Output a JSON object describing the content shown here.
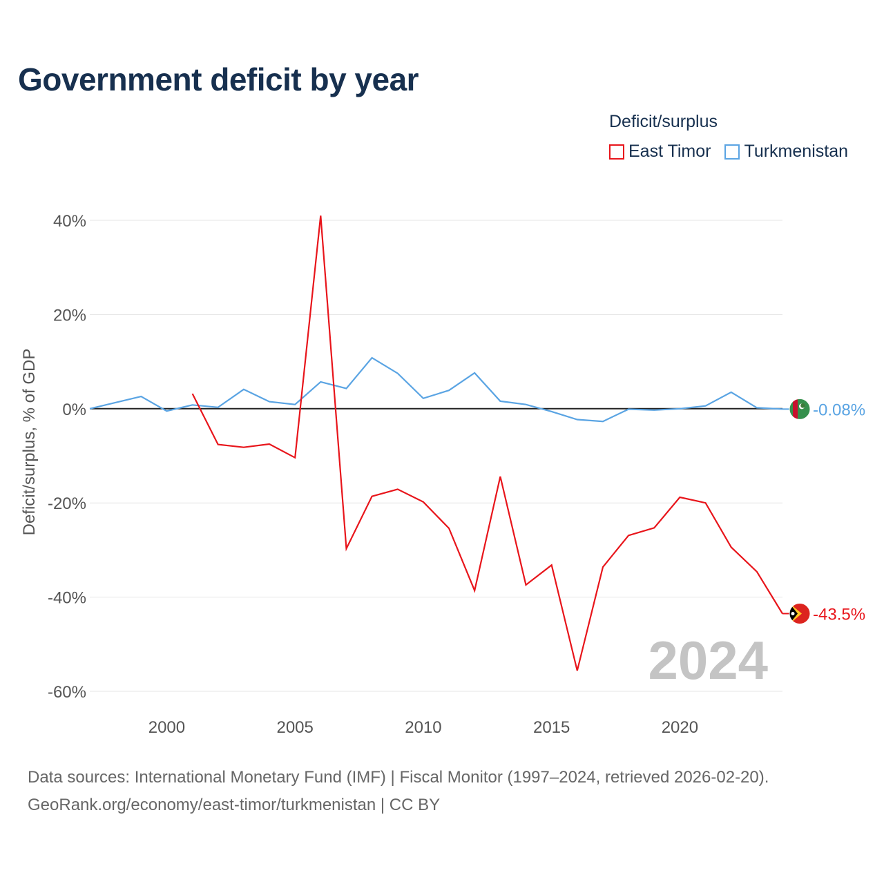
{
  "title": "Government deficit by year",
  "legend": {
    "title": "Deficit/surplus",
    "items": [
      {
        "label": "East Timor",
        "color": "#e8151b"
      },
      {
        "label": "Turkmenistan",
        "color": "#5aa4e3"
      }
    ]
  },
  "sources": {
    "line1": "Data sources: International Monetary Fund (IMF) | Fiscal Monitor (1997–2024, retrieved 2026-02-20).",
    "line2": "GeoRank.org/economy/east-timor/turkmenistan | CC BY"
  },
  "chart_data": {
    "type": "line",
    "title": "Government deficit by year",
    "xlabel": "",
    "ylabel": "Deficit/surplus, % of GDP",
    "xlim": [
      1997,
      2024
    ],
    "ylim": [
      -60,
      40
    ],
    "yticks": [
      40,
      20,
      0,
      -20,
      -40,
      -60
    ],
    "ytick_labels": [
      "40%",
      "20%",
      "0%",
      "-20%",
      "-40%",
      "-60%"
    ],
    "xticks": [
      2000,
      2005,
      2010,
      2015,
      2020
    ],
    "xtick_labels": [
      "2000",
      "2005",
      "2010",
      "2015",
      "2020"
    ],
    "watermark_year": "2024",
    "series": [
      {
        "name": "East Timor",
        "color": "#e8151b",
        "end_label": "-43.5%",
        "flag_icon": "east-timor-flag-icon",
        "x": [
          2001,
          2002,
          2003,
          2004,
          2005,
          2006,
          2007,
          2008,
          2009,
          2010,
          2011,
          2012,
          2013,
          2014,
          2015,
          2016,
          2017,
          2018,
          2019,
          2020,
          2021,
          2022,
          2023,
          2024
        ],
        "values": [
          3.2,
          -7.6,
          -8.2,
          -7.5,
          -10.4,
          41.0,
          -29.7,
          -18.6,
          -17.1,
          -19.8,
          -25.4,
          -38.6,
          -14.4,
          -37.4,
          -33.2,
          -55.6,
          -33.6,
          -26.9,
          -25.3,
          -18.8,
          -20.0,
          -29.4,
          -34.6,
          -43.5
        ]
      },
      {
        "name": "Turkmenistan",
        "color": "#5aa4e3",
        "end_label": "-0.08%",
        "flag_icon": "turkmenistan-flag-icon",
        "x": [
          1997,
          1998,
          1999,
          2000,
          2001,
          2002,
          2003,
          2004,
          2005,
          2006,
          2007,
          2008,
          2009,
          2010,
          2011,
          2012,
          2013,
          2014,
          2015,
          2016,
          2017,
          2018,
          2019,
          2020,
          2021,
          2022,
          2023,
          2024
        ],
        "values": [
          0.0,
          1.3,
          2.6,
          -0.5,
          0.8,
          0.3,
          4.1,
          1.5,
          0.9,
          5.7,
          4.3,
          10.8,
          7.5,
          2.2,
          3.9,
          7.6,
          1.6,
          0.9,
          -0.6,
          -2.3,
          -2.7,
          -0.1,
          -0.3,
          0.0,
          0.6,
          3.5,
          0.2,
          -0.08
        ]
      }
    ]
  }
}
